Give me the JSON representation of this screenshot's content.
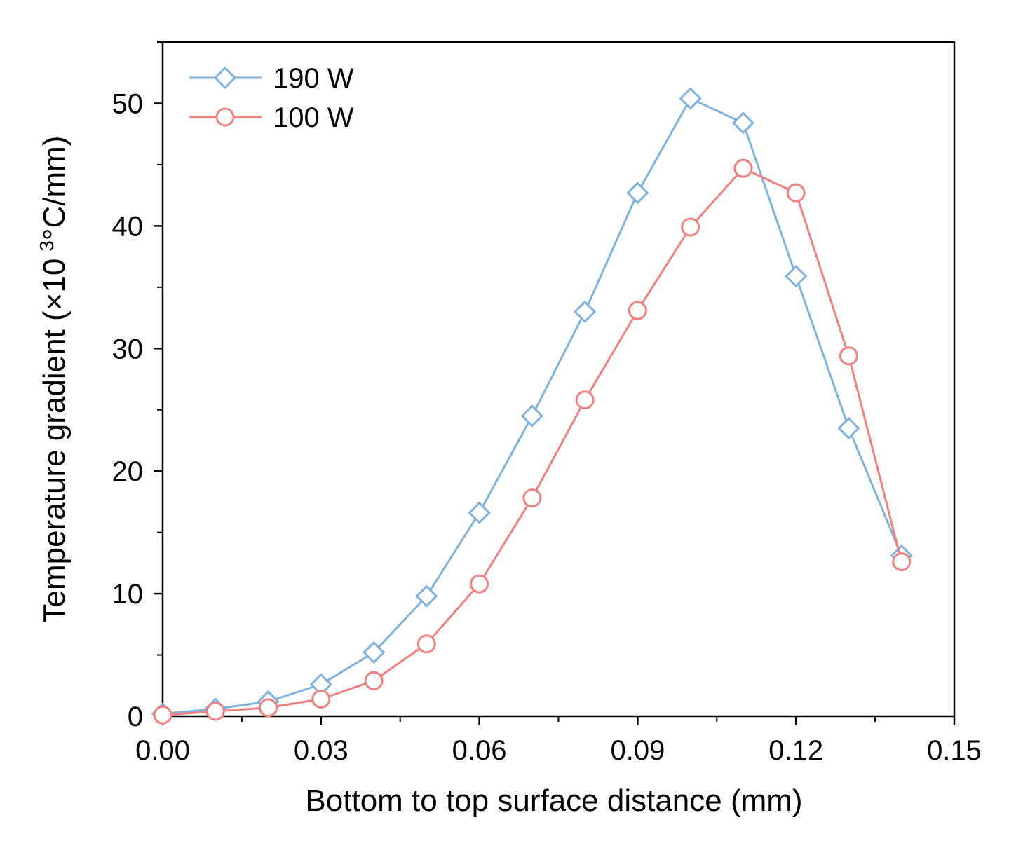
{
  "chart_data": {
    "type": "line",
    "title": "",
    "xlabel": "Bottom to top surface distance (mm)",
    "ylabel_main": "Temperature gradient (×10",
    "ylabel_sup": "3",
    "ylabel_end": "°C/mm)",
    "xlim": [
      0,
      0.15
    ],
    "ylim": [
      0,
      55
    ],
    "xticks": [
      0,
      0.03,
      0.06,
      0.09,
      0.12,
      0.15
    ],
    "xtick_labels": [
      "0.00",
      "0.03",
      "0.06",
      "0.09",
      "0.12",
      "0.15"
    ],
    "yticks": [
      0,
      10,
      20,
      30,
      40,
      50
    ],
    "ytick_labels": [
      "0",
      "10",
      "20",
      "30",
      "40",
      "50"
    ],
    "grid": false,
    "legend_position": "top-left",
    "x": [
      0,
      0.01,
      0.02,
      0.03,
      0.04,
      0.05,
      0.06,
      0.07,
      0.08,
      0.09,
      0.1,
      0.11,
      0.12,
      0.13,
      0.14
    ],
    "series": [
      {
        "name": "190 W",
        "marker": "diamond",
        "color": "#7FB2DC",
        "values": [
          0.2,
          0.6,
          1.2,
          2.6,
          5.2,
          9.8,
          16.6,
          24.5,
          33.0,
          42.7,
          50.4,
          48.4,
          35.9,
          23.5,
          13.1
        ]
      },
      {
        "name": "100 W",
        "marker": "circle",
        "color": "#F28080",
        "values": [
          0.1,
          0.4,
          0.7,
          1.4,
          2.9,
          5.9,
          10.8,
          17.8,
          25.8,
          33.1,
          39.9,
          44.7,
          42.7,
          29.4,
          12.6
        ]
      }
    ]
  }
}
